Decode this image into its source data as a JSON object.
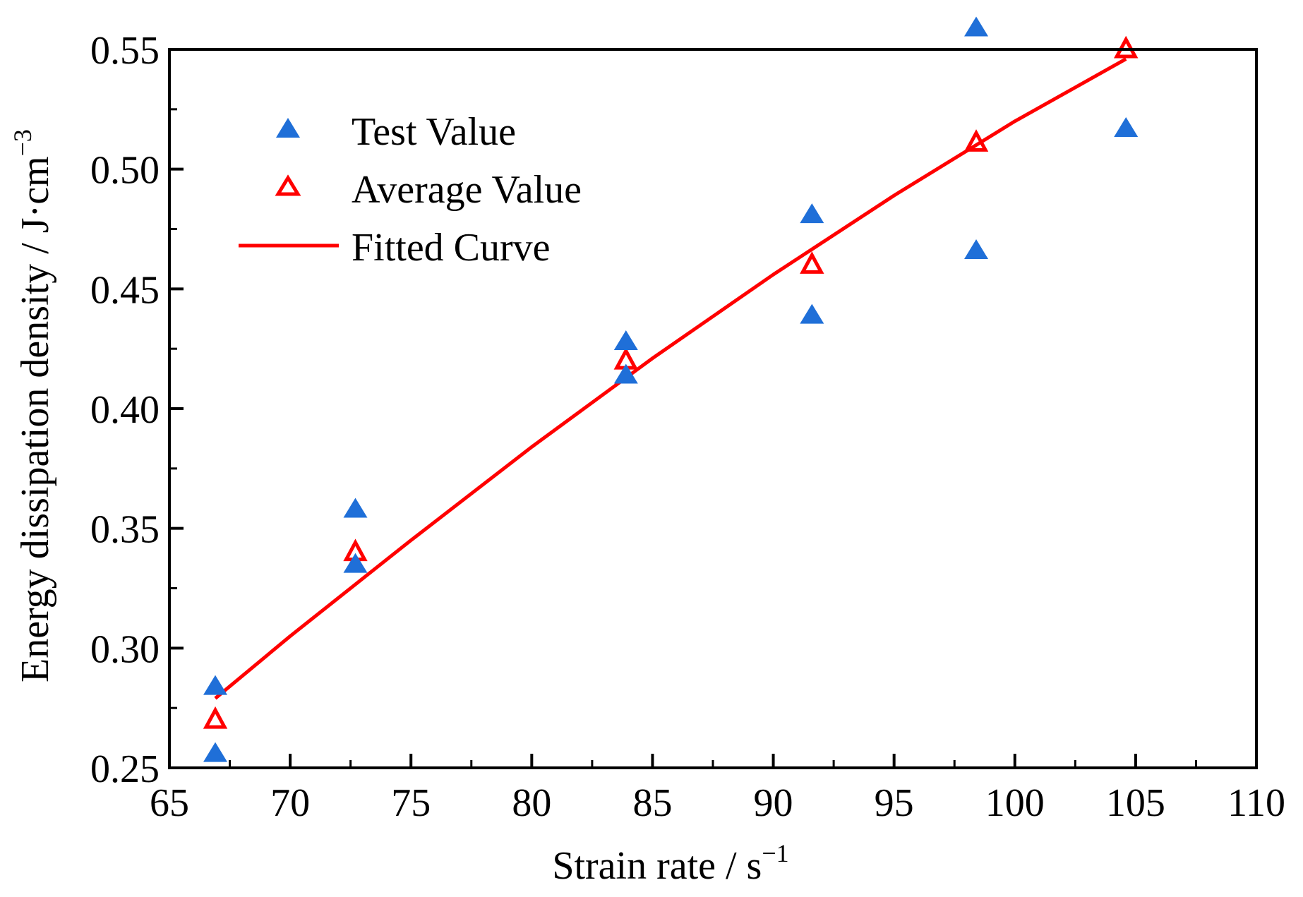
{
  "chart_data": {
    "type": "scatter",
    "xlabel": "Strain rate / s",
    "xlabel_sup": "−1",
    "ylabel": "Energy dissipation density / J·cm",
    "ylabel_sup": "−3",
    "xlim": [
      65,
      110
    ],
    "ylim": [
      0.25,
      0.55
    ],
    "x_ticks": [
      65,
      70,
      75,
      80,
      85,
      90,
      95,
      100,
      105,
      110
    ],
    "x_tick_labels": [
      "65",
      "70",
      "75",
      "80",
      "85",
      "90",
      "95",
      "100",
      "105",
      "110"
    ],
    "y_ticks": [
      0.25,
      0.3,
      0.35,
      0.4,
      0.45,
      0.5,
      0.55
    ],
    "y_tick_labels": [
      "0.25",
      "0.30",
      "0.35",
      "0.40",
      "0.45",
      "0.50",
      "0.55"
    ],
    "legend_position": "top-left",
    "series": [
      {
        "name": "Test Value",
        "marker": "filled-triangle",
        "color": "#1f6fd8",
        "points": [
          [
            66.9,
            0.284
          ],
          [
            66.9,
            0.256
          ],
          [
            72.7,
            0.358
          ],
          [
            72.7,
            0.335
          ],
          [
            83.9,
            0.428
          ],
          [
            83.9,
            0.414
          ],
          [
            91.6,
            0.481
          ],
          [
            91.6,
            0.439
          ],
          [
            98.4,
            0.559
          ],
          [
            98.4,
            0.466
          ],
          [
            104.6,
            0.517
          ]
        ]
      },
      {
        "name": "Average Value",
        "marker": "open-triangle",
        "color": "#ff0000",
        "points": [
          [
            66.9,
            0.27
          ],
          [
            72.7,
            0.34
          ],
          [
            83.9,
            0.42
          ],
          [
            91.6,
            0.46
          ],
          [
            98.4,
            0.511
          ],
          [
            104.6,
            0.55
          ]
        ]
      },
      {
        "name": "Fitted Curve",
        "marker": "line",
        "color": "#ff0000",
        "points": [
          [
            66.9,
            0.279
          ],
          [
            70,
            0.305
          ],
          [
            75,
            0.345
          ],
          [
            80,
            0.384
          ],
          [
            85,
            0.421
          ],
          [
            90,
            0.456
          ],
          [
            95,
            0.489
          ],
          [
            100,
            0.52
          ],
          [
            104.6,
            0.546
          ]
        ]
      }
    ]
  }
}
